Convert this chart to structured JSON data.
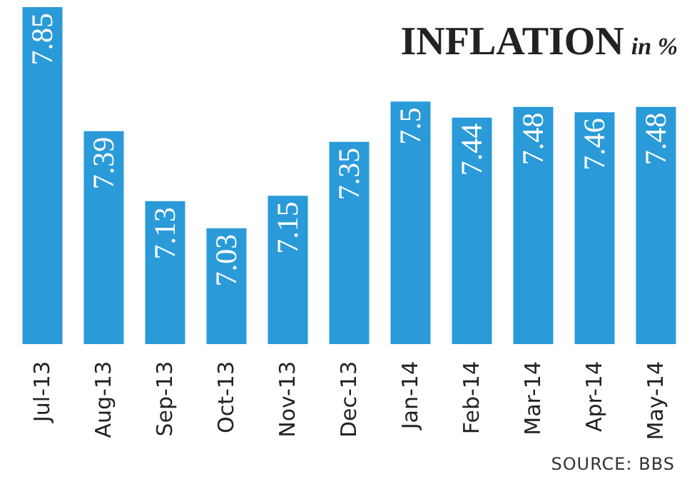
{
  "chart_data": {
    "type": "bar",
    "title": "INFLATION",
    "subtitle": "in %",
    "categories": [
      "Jul-13",
      "Aug-13",
      "Sep-13",
      "Oct-13",
      "Nov-13",
      "Dec-13",
      "Jan-14",
      "Feb-14",
      "Mar-14",
      "Apr-14",
      "May-14"
    ],
    "values": [
      7.85,
      7.39,
      7.13,
      7.03,
      7.15,
      7.35,
      7.5,
      7.44,
      7.48,
      7.46,
      7.48
    ],
    "color": "#2a9ad8",
    "ylim": [
      6.6,
      7.85
    ],
    "data_labels": true,
    "annotations": [
      "SOURCE: BBS"
    ]
  }
}
